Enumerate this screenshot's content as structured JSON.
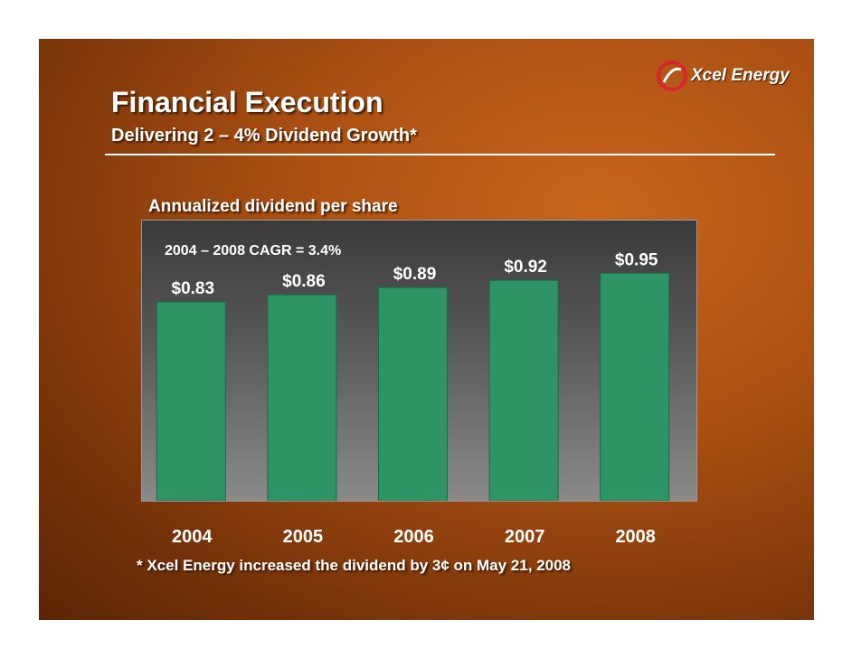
{
  "slide": {
    "title": "Financial Execution",
    "subtitle": "Delivering 2 – 4% Dividend Growth*",
    "logo_text": "Xcel Energy",
    "footnote": "* Xcel Energy increased the dividend by 3¢ on May 21, 2008"
  },
  "colors": {
    "bar": "#2e9466",
    "bar_edge": "#1a6b45",
    "text": "#ffffff",
    "logo_red": "#d8262e"
  },
  "chart_data": {
    "type": "bar",
    "title": "Annualized dividend per share",
    "annotation": "2004 – 2008 CAGR = 3.4%",
    "categories": [
      "2004",
      "2005",
      "2006",
      "2007",
      "2008"
    ],
    "values": [
      0.83,
      0.86,
      0.89,
      0.92,
      0.95
    ],
    "value_labels": [
      "$0.83",
      "$0.86",
      "$0.89",
      "$0.92",
      "$0.95"
    ],
    "ylim": [
      0,
      1.17
    ],
    "grid": false
  }
}
